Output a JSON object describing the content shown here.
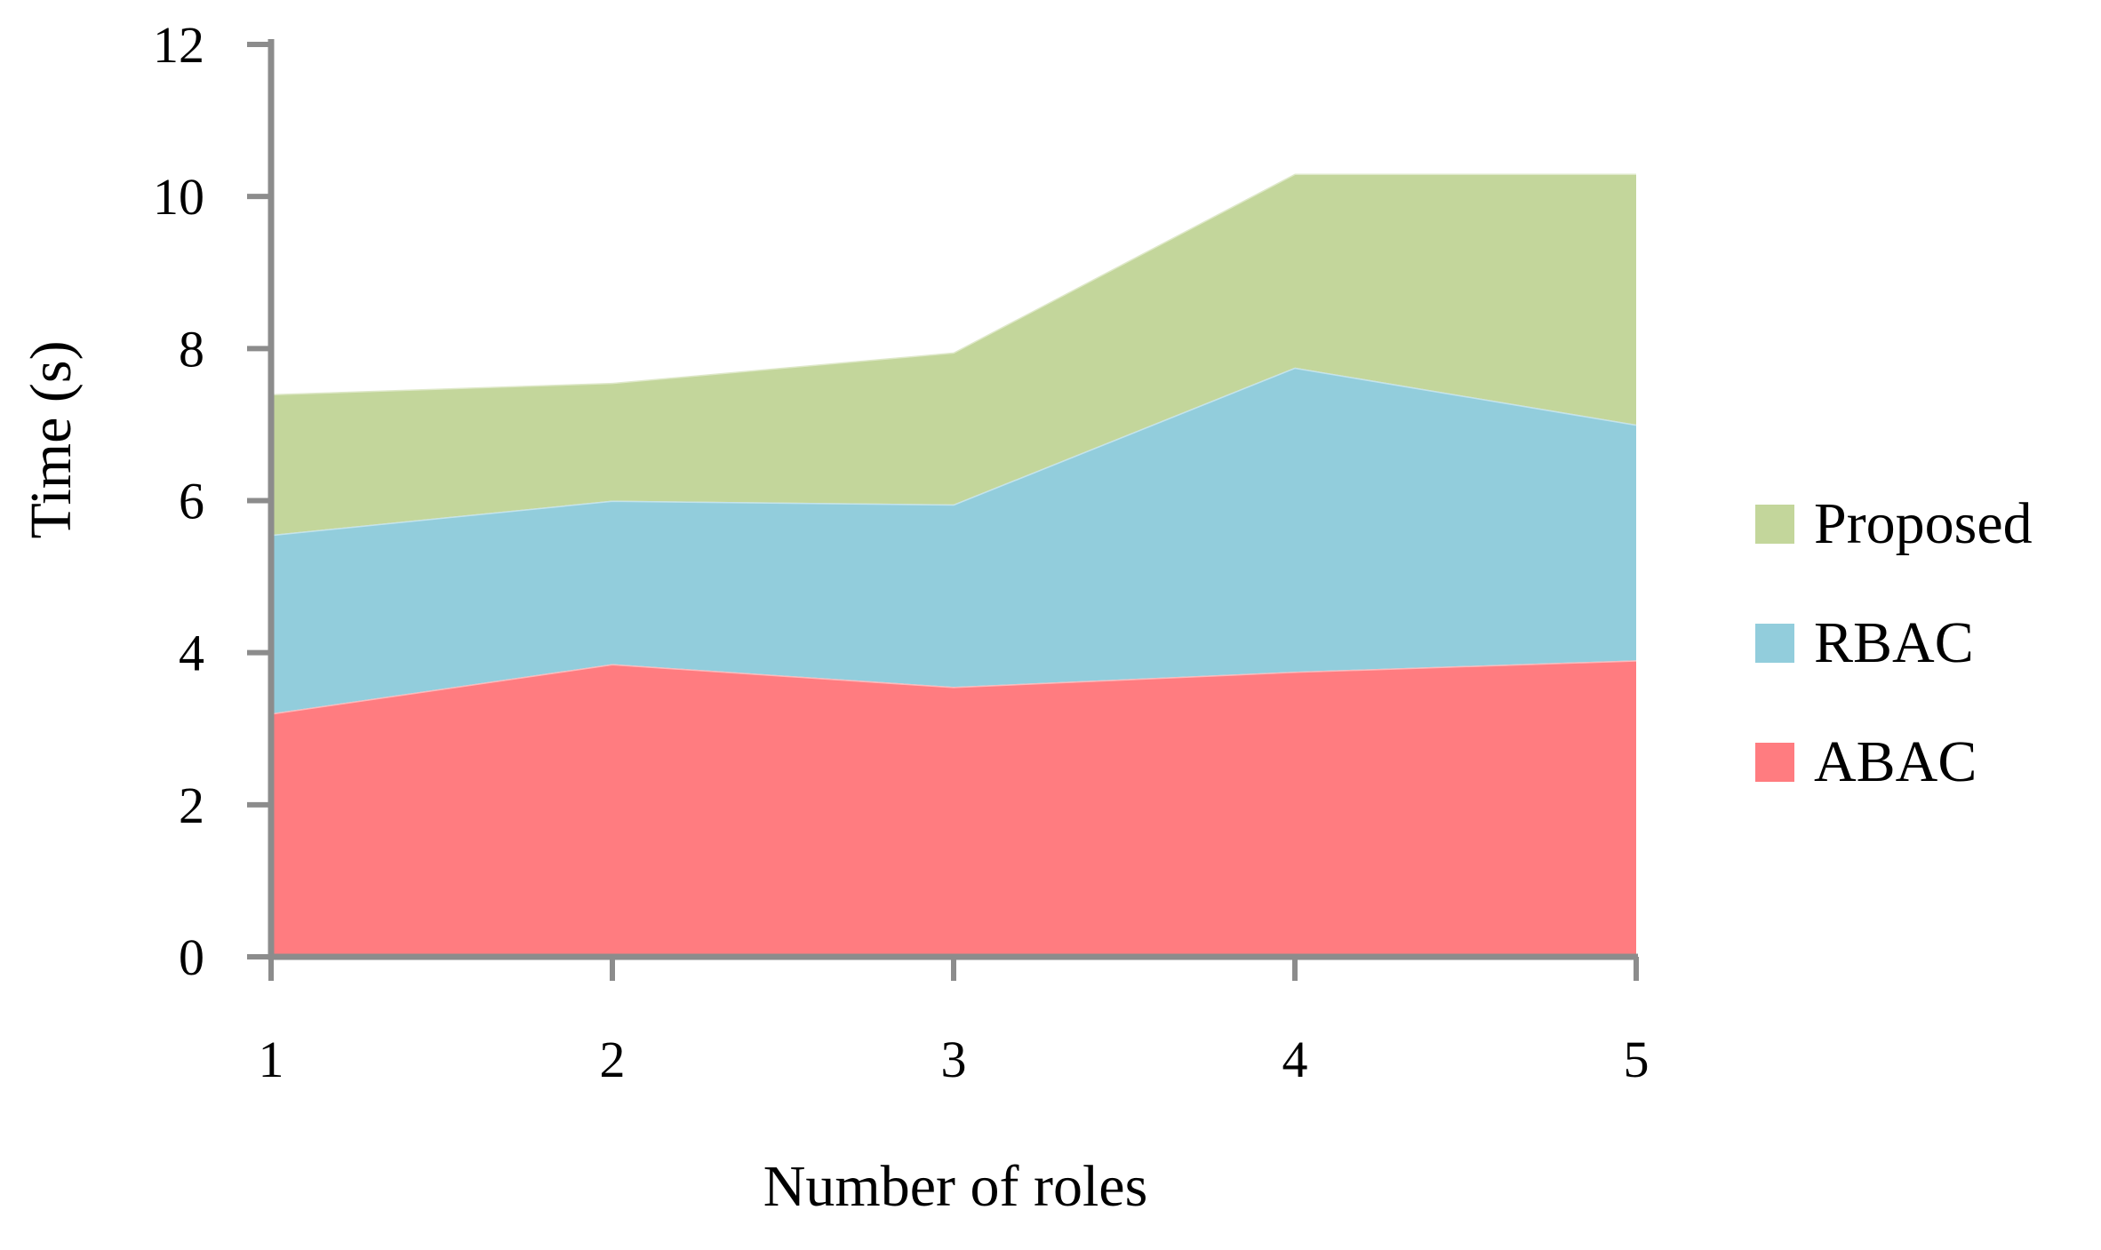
{
  "chart_data": {
    "type": "area",
    "stacked": true,
    "title": "",
    "xlabel": "Number of roles",
    "ylabel": "Time (s)",
    "x": [
      1,
      2,
      3,
      4,
      5
    ],
    "xtick_labels": [
      "1",
      "2",
      "3",
      "4",
      "5"
    ],
    "yticks": [
      0,
      2,
      4,
      6,
      8,
      10,
      12
    ],
    "ytick_labels": [
      "0",
      "2",
      "4",
      "6",
      "8",
      "10",
      "12"
    ],
    "xlim": [
      1,
      5
    ],
    "ylim": [
      0,
      12
    ],
    "grid": false,
    "legend_position": "right",
    "series": [
      {
        "name": "ABAC",
        "color": "#ff7c80",
        "values": [
          3.2,
          3.85,
          3.55,
          3.75,
          3.9
        ]
      },
      {
        "name": "RBAC",
        "color": "#92cddc",
        "values": [
          2.35,
          2.15,
          2.4,
          4.0,
          3.1
        ]
      },
      {
        "name": "Proposed",
        "color": "#c3d69b",
        "values": [
          1.85,
          1.55,
          2.0,
          2.55,
          3.3
        ]
      }
    ],
    "cumulative_tops": {
      "ABAC": [
        3.2,
        3.85,
        3.55,
        3.75,
        3.9
      ],
      "RBAC": [
        5.55,
        6.0,
        5.95,
        7.75,
        7.0
      ],
      "Proposed": [
        7.4,
        7.55,
        7.95,
        10.3,
        10.3
      ]
    },
    "axis_color": "#8c8c8c",
    "text_color": "#000000",
    "background": "#ffffff"
  },
  "legend": {
    "items": [
      {
        "label": "Proposed",
        "color": "#c3d69b"
      },
      {
        "label": "RBAC",
        "color": "#92cddc"
      },
      {
        "label": "ABAC",
        "color": "#ff7c80"
      }
    ]
  }
}
